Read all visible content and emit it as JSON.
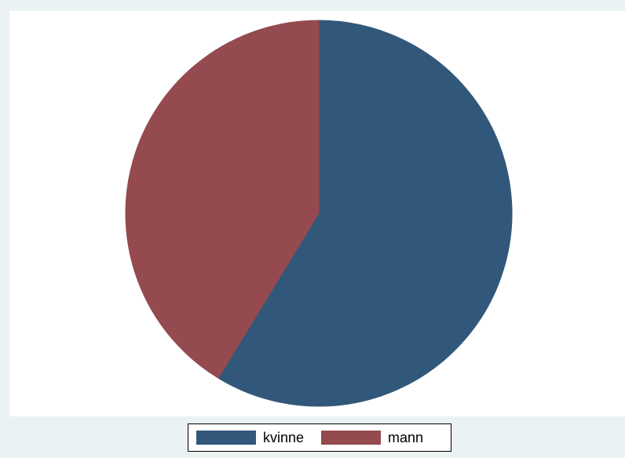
{
  "chart_data": {
    "type": "pie",
    "title": "",
    "slices": [
      {
        "label": "kvinne",
        "value": 58.7,
        "color": "#31587a"
      },
      {
        "label": "mann",
        "value": 41.3,
        "color": "#944a4e"
      }
    ],
    "start_angle": "12 o'clock",
    "direction": "clockwise",
    "legend_placement": "bottom"
  },
  "colors": {
    "background": "#eaf2f3",
    "plot_background": "#ffffff"
  }
}
